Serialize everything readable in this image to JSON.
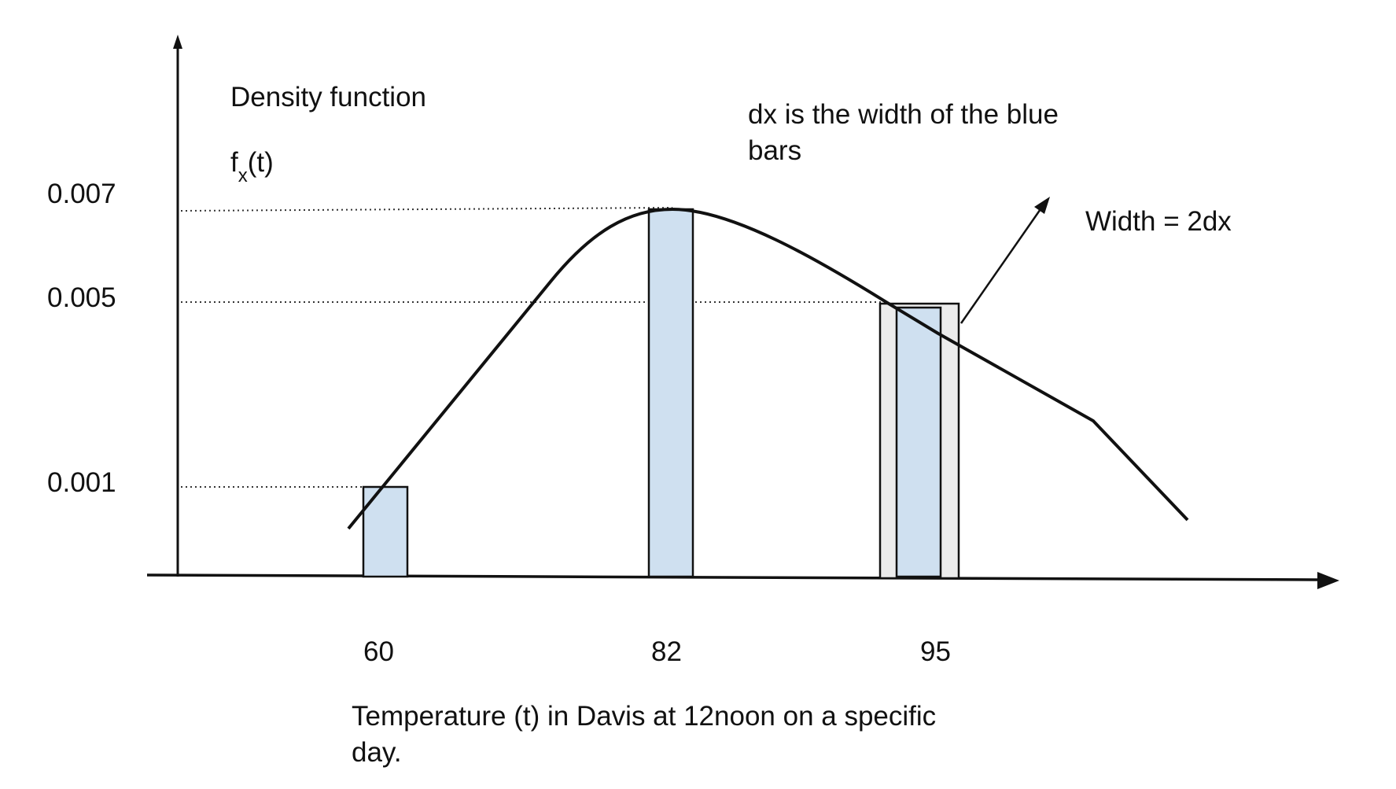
{
  "y_axis": {
    "title": "Density function",
    "symbol_base": "f",
    "symbol_sub": "x",
    "symbol_arg": "(t)",
    "ticks": [
      "0.007",
      "0.005",
      "0.001"
    ]
  },
  "x_axis": {
    "ticks": [
      "60",
      "82",
      "95"
    ],
    "caption_line1": "Temperature (t) in Davis at 12noon on a specific",
    "caption_line2": "day."
  },
  "annotations": {
    "dx_line1": "dx is the width of the blue",
    "dx_line2": "bars",
    "width_label": "Width = 2dx"
  },
  "bars": [
    {
      "x": 60,
      "density": 0.001,
      "label": "60"
    },
    {
      "x": 82,
      "density": 0.007,
      "label": "82"
    },
    {
      "x": 95,
      "density": 0.005,
      "label": "95"
    }
  ],
  "colors": {
    "bar_fill": "#cfe0f0",
    "wide_bar_fill": "#ececec",
    "stroke": "#111111"
  }
}
